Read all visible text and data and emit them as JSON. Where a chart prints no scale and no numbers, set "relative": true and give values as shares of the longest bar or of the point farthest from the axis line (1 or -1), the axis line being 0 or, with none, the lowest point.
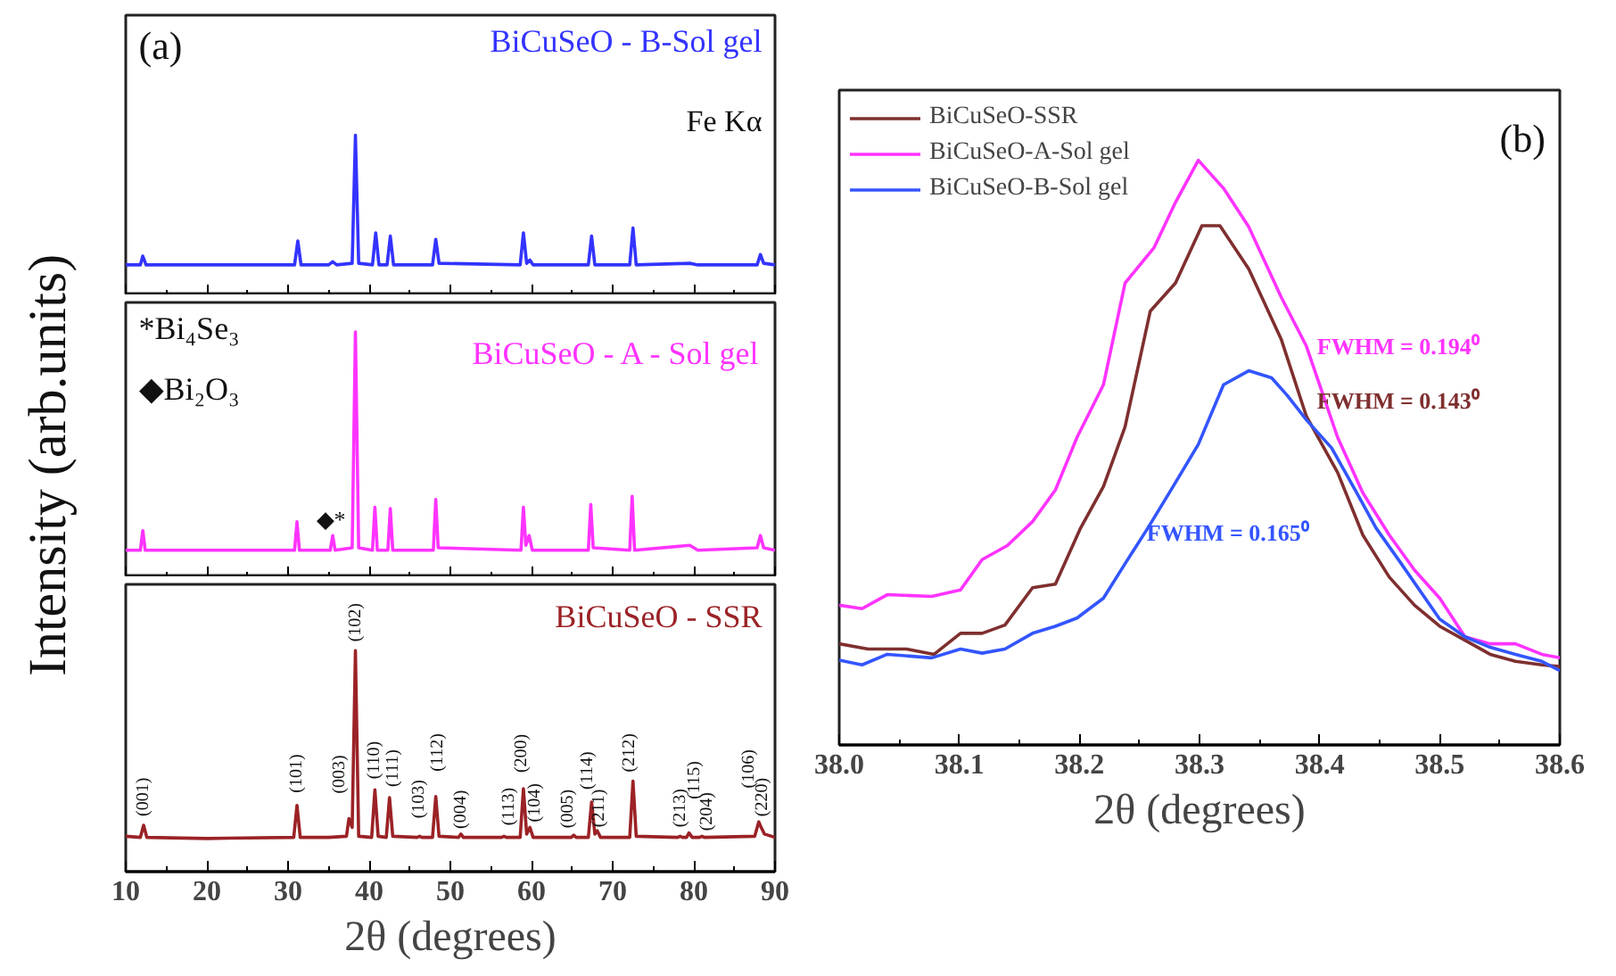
{
  "chart_data": [
    {
      "type": "line",
      "relative": true,
      "legend": false,
      "grid": false,
      "tick_labels": false,
      "xlim": [
        10,
        90
      ],
      "xticks": [
        10,
        20,
        30,
        40,
        50,
        60,
        70,
        80,
        90
      ],
      "annotations": [
        "(a)",
        "Fe Kα"
      ],
      "series": [
        {
          "name": "BiCuSeO - B-Sol gel",
          "color": "#3333ff",
          "x": [
            10,
            11.8,
            12.1,
            12.5,
            30.8,
            31.2,
            31.6,
            35.0,
            35.5,
            36.0,
            37.9,
            38.3,
            38.7,
            40.4,
            40.8,
            41.2,
            42.2,
            42.6,
            43.0,
            47.8,
            48.2,
            48.6,
            58.6,
            59.0,
            59.4,
            59.8,
            60.2,
            67.0,
            67.4,
            67.8,
            72.1,
            72.5,
            72.9,
            79.5,
            80.5,
            87.8,
            88.2,
            88.6,
            90
          ],
          "values": [
            0.19,
            0.19,
            0.245,
            0.19,
            0.19,
            0.34,
            0.19,
            0.19,
            0.21,
            0.19,
            0.2,
            1.0,
            0.2,
            0.19,
            0.39,
            0.19,
            0.19,
            0.37,
            0.19,
            0.19,
            0.35,
            0.2,
            0.19,
            0.39,
            0.2,
            0.22,
            0.19,
            0.19,
            0.37,
            0.19,
            0.19,
            0.42,
            0.19,
            0.2,
            0.19,
            0.19,
            0.255,
            0.2,
            0.19
          ]
        }
      ]
    },
    {
      "type": "line",
      "relative": true,
      "legend": false,
      "grid": false,
      "tick_labels": false,
      "xlim": [
        10,
        90
      ],
      "xticks": [
        10,
        20,
        30,
        40,
        50,
        60,
        70,
        80,
        90
      ],
      "ylabel": "Intensity (arb.units)",
      "annotations": [
        "*Bi₄Se₃",
        "◆Bi₂O₃",
        "◆*"
      ],
      "series": [
        {
          "name": "BiCuSeO - A - Sol gel",
          "color": "#ff33ff",
          "x": [
            10,
            11.8,
            12.1,
            12.4,
            30.8,
            31.1,
            31.4,
            35.2,
            35.5,
            35.8,
            37.9,
            38.3,
            38.7,
            40.4,
            40.7,
            41.0,
            42.3,
            42.6,
            42.9,
            47.9,
            48.2,
            48.5,
            58.7,
            59.0,
            59.3,
            59.7,
            60.1,
            67.0,
            67.3,
            67.6,
            72.1,
            72.4,
            72.7,
            79.5,
            80.5,
            87.8,
            88.2,
            88.6,
            90
          ],
          "values": [
            0.11,
            0.11,
            0.19,
            0.11,
            0.11,
            0.226,
            0.11,
            0.11,
            0.17,
            0.11,
            0.12,
            1.0,
            0.12,
            0.11,
            0.285,
            0.11,
            0.11,
            0.28,
            0.11,
            0.11,
            0.317,
            0.12,
            0.11,
            0.285,
            0.13,
            0.17,
            0.11,
            0.11,
            0.296,
            0.12,
            0.11,
            0.33,
            0.11,
            0.13,
            0.11,
            0.12,
            0.17,
            0.12,
            0.11
          ]
        }
      ]
    },
    {
      "type": "line",
      "relative": true,
      "legend": false,
      "grid": false,
      "tick_labels": "x",
      "xlim": [
        10,
        90
      ],
      "xticks": [
        10,
        20,
        30,
        40,
        50,
        60,
        70,
        80,
        90
      ],
      "xlabel": "2θ (degrees)",
      "annotations": [
        {
          "text": "(001)",
          "x": 12.2,
          "y": 0.21
        },
        {
          "text": "(101)",
          "x": 31.1,
          "y": 0.3
        },
        {
          "text": "(003)",
          "x": 37.5,
          "y": 0.24
        },
        {
          "text": "(102)",
          "x": 38.3,
          "y": 1.0
        },
        {
          "text": "(110)",
          "x": 40.7,
          "y": 0.37
        },
        {
          "text": "(111)",
          "x": 42.5,
          "y": 0.335
        },
        {
          "text": "(103)",
          "x": 46.2,
          "y": 0.16
        },
        {
          "text": "(112)",
          "x": 48.2,
          "y": 0.34
        },
        {
          "text": "(004)",
          "x": 51.3,
          "y": 0.17
        },
        {
          "text": "(113)",
          "x": 56.6,
          "y": 0.16
        },
        {
          "text": "(200)",
          "x": 59.0,
          "y": 0.375
        },
        {
          "text": "(104)",
          "x": 59.8,
          "y": 0.2
        },
        {
          "text": "(005)",
          "x": 65.2,
          "y": 0.165
        },
        {
          "text": "(114)",
          "x": 67.4,
          "y": 0.315
        },
        {
          "text": "(211)",
          "x": 68.1,
          "y": 0.185
        },
        {
          "text": "(212)",
          "x": 72.5,
          "y": 0.41
        },
        {
          "text": "(213)",
          "x": 78.3,
          "y": 0.16
        },
        {
          "text": "(115)",
          "x": 79.4,
          "y": 0.175
        },
        {
          "text": "(204)",
          "x": 81.0,
          "y": 0.16
        },
        {
          "text": "(106)",
          "x": 88.3,
          "y": 0.2
        },
        {
          "text": "(220)",
          "x": 88.0,
          "y": 0.225
        }
      ],
      "series": [
        {
          "name": "BiCuSeO - SSR",
          "color": "#9b2226",
          "x": [
            10,
            11.8,
            12.2,
            12.6,
            20,
            30.7,
            31.1,
            31.5,
            35,
            37.2,
            37.5,
            37.9,
            38.3,
            38.7,
            40.3,
            40.7,
            41.1,
            42.1,
            42.5,
            42.9,
            45.9,
            46.2,
            46.5,
            47.8,
            48.2,
            48.6,
            51.0,
            51.3,
            51.6,
            56.3,
            56.6,
            56.9,
            58.6,
            59.0,
            59.4,
            59.8,
            60.2,
            64.9,
            65.2,
            65.5,
            67.0,
            67.4,
            67.8,
            68.1,
            68.5,
            72.1,
            72.5,
            72.9,
            78.0,
            78.3,
            78.6,
            79.1,
            79.4,
            79.8,
            80.7,
            81.0,
            81.3,
            87.5,
            88.0,
            88.3,
            88.7,
            90
          ],
          "values": [
            0.16,
            0.155,
            0.21,
            0.155,
            0.15,
            0.155,
            0.3,
            0.155,
            0.155,
            0.16,
            0.24,
            0.2,
            1.0,
            0.16,
            0.155,
            0.37,
            0.16,
            0.155,
            0.335,
            0.16,
            0.155,
            0.16,
            0.155,
            0.155,
            0.34,
            0.16,
            0.155,
            0.17,
            0.155,
            0.155,
            0.16,
            0.155,
            0.155,
            0.375,
            0.17,
            0.2,
            0.155,
            0.155,
            0.165,
            0.155,
            0.155,
            0.315,
            0.17,
            0.185,
            0.155,
            0.155,
            0.41,
            0.16,
            0.155,
            0.16,
            0.155,
            0.155,
            0.175,
            0.155,
            0.155,
            0.16,
            0.155,
            0.16,
            0.225,
            0.2,
            0.17,
            0.155
          ]
        }
      ]
    },
    {
      "type": "line",
      "relative": true,
      "legend": "top left",
      "grid": false,
      "tick_labels": "x",
      "xlim": [
        38.0,
        38.6
      ],
      "xlabel": "2θ (degrees)",
      "xticks": [
        {
          "value": 38.0,
          "label": "38.0"
        },
        {
          "value": 38.1,
          "label": "38.1"
        },
        {
          "value": 38.2,
          "label": "38.2"
        },
        {
          "value": 38.3,
          "label": "38.3"
        },
        {
          "value": 38.4,
          "label": "38.4"
        },
        {
          "value": 38.5,
          "label": "38.5"
        },
        {
          "value": 38.6,
          "label": "38.6"
        }
      ],
      "annotations": [
        "(b)",
        {
          "text": "FWHM = 0.194⁰",
          "x": 38.389,
          "y": 0.682
        },
        {
          "text": "FWHM = 0.143⁰",
          "x": 38.389,
          "y": 0.562
        },
        {
          "text": "FWHM = 0.165⁰",
          "x": 38.256,
          "y": 0.363
        }
      ],
      "series": [
        {
          "name": "BiCuSeO-SSR",
          "color": "#7f2f2f",
          "x": [
            38.0,
            38.024,
            38.056,
            38.079,
            38.101,
            38.119,
            38.138,
            38.161,
            38.18,
            38.201,
            38.22,
            38.238,
            38.259,
            38.28,
            38.302,
            38.317,
            38.341,
            38.368,
            38.389,
            38.415,
            38.436,
            38.458,
            38.479,
            38.5,
            38.521,
            38.542,
            38.563,
            38.585,
            38.6
          ],
          "values": [
            0.173,
            0.164,
            0.164,
            0.155,
            0.191,
            0.191,
            0.205,
            0.269,
            0.275,
            0.371,
            0.442,
            0.544,
            0.742,
            0.79,
            0.888,
            0.888,
            0.814,
            0.694,
            0.562,
            0.466,
            0.359,
            0.287,
            0.239,
            0.203,
            0.179,
            0.155,
            0.143,
            0.137,
            0.134
          ]
        },
        {
          "name": "BiCuSeO-A-Sol gel",
          "color": "#ff33ff",
          "x": [
            38.0,
            38.019,
            38.04,
            38.077,
            38.101,
            38.119,
            38.14,
            38.161,
            38.18,
            38.198,
            38.22,
            38.238,
            38.262,
            38.28,
            38.299,
            38.32,
            38.341,
            38.368,
            38.389,
            38.415,
            38.436,
            38.458,
            38.479,
            38.5,
            38.521,
            38.542,
            38.563,
            38.585,
            38.6
          ],
          "values": [
            0.239,
            0.233,
            0.257,
            0.254,
            0.265,
            0.317,
            0.341,
            0.382,
            0.436,
            0.526,
            0.616,
            0.79,
            0.85,
            0.928,
            1.0,
            0.952,
            0.886,
            0.766,
            0.682,
            0.526,
            0.431,
            0.359,
            0.299,
            0.251,
            0.185,
            0.173,
            0.173,
            0.155,
            0.149
          ]
        },
        {
          "name": "BiCuSeO-B-Sol gel",
          "color": "#3355ff",
          "x": [
            38.0,
            38.019,
            38.04,
            38.077,
            38.101,
            38.119,
            38.138,
            38.161,
            38.18,
            38.198,
            38.22,
            38.238,
            38.257,
            38.278,
            38.299,
            38.32,
            38.341,
            38.36,
            38.373,
            38.389,
            38.41,
            38.431,
            38.447,
            38.468,
            38.5,
            38.521,
            38.542,
            38.563,
            38.585,
            38.6
          ],
          "values": [
            0.145,
            0.137,
            0.155,
            0.149,
            0.164,
            0.157,
            0.164,
            0.191,
            0.203,
            0.217,
            0.251,
            0.31,
            0.371,
            0.442,
            0.514,
            0.616,
            0.64,
            0.628,
            0.598,
            0.556,
            0.508,
            0.431,
            0.371,
            0.31,
            0.215,
            0.185,
            0.167,
            0.155,
            0.143,
            0.127
          ]
        }
      ]
    }
  ]
}
